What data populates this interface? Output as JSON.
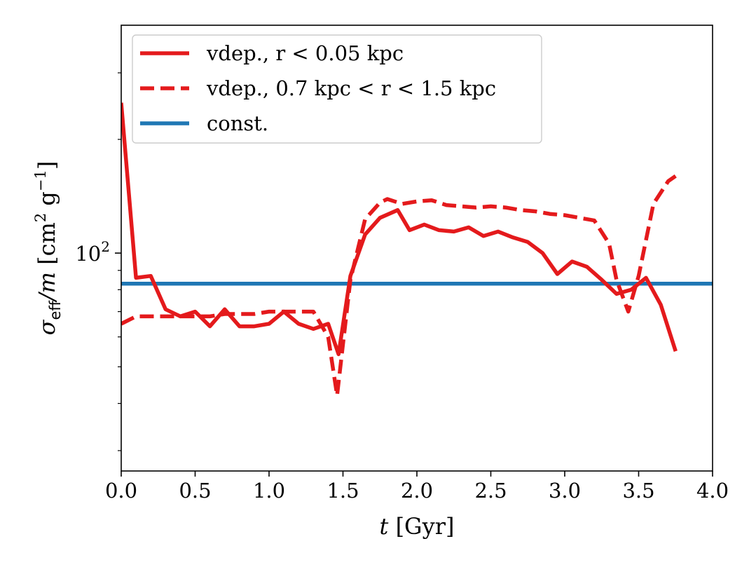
{
  "chart_data": {
    "type": "line",
    "title": "",
    "xlabel_var": "t",
    "xlabel_unit": " [Gyr]",
    "ylabel_var": "σ",
    "ylabel_sub": "eff",
    "ylabel_rest": "/m",
    "ylabel_unit_open": " [cm",
    "ylabel_unit_sup1": "2",
    "ylabel_unit_mid": " g",
    "ylabel_unit_sup2": "−1",
    "ylabel_unit_close": "]",
    "xlim": [
      0.0,
      4.0
    ],
    "ylim": [
      26.5,
      401
    ],
    "yscale": "log",
    "x_ticks": [
      0.0,
      0.5,
      1.0,
      1.5,
      2.0,
      2.5,
      3.0,
      3.5,
      4.0
    ],
    "x_tick_labels": [
      "0.0",
      "0.5",
      "1.0",
      "1.5",
      "2.0",
      "2.5",
      "3.0",
      "3.5",
      "4.0"
    ],
    "y_major_ticks": [
      100
    ],
    "y_major_label_base": "10",
    "y_major_label_exp": "2",
    "y_minor_ticks": [
      30,
      40,
      50,
      60,
      70,
      80,
      90,
      200,
      300
    ],
    "legend_position": "upper-left",
    "series": [
      {
        "name": "vdep., r < 0.05 kpc",
        "color": "#e41a1c",
        "style": "solid",
        "x": [
          0.0,
          0.1,
          0.2,
          0.3,
          0.4,
          0.5,
          0.6,
          0.7,
          0.8,
          0.9,
          1.0,
          1.1,
          1.2,
          1.3,
          1.4,
          1.47,
          1.55,
          1.65,
          1.75,
          1.87,
          1.95,
          2.05,
          2.15,
          2.25,
          2.35,
          2.45,
          2.55,
          2.65,
          2.75,
          2.85,
          2.95,
          3.05,
          3.15,
          3.25,
          3.35,
          3.45,
          3.55,
          3.65,
          3.75
        ],
        "values": [
          250,
          86,
          87,
          71,
          68,
          70,
          64,
          71,
          64,
          64,
          65,
          70,
          65,
          63,
          65,
          54,
          87,
          112,
          124,
          130,
          115,
          119,
          115,
          114,
          117,
          111,
          114,
          110,
          107,
          100,
          88,
          95,
          92,
          85,
          78,
          80,
          86,
          73,
          55
        ]
      },
      {
        "name": "vdep., 0.7 kpc < r < 1.5 kpc",
        "color": "#e41a1c",
        "style": "dashed",
        "x": [
          0.0,
          0.1,
          0.2,
          0.3,
          0.4,
          0.5,
          0.6,
          0.7,
          0.8,
          0.9,
          1.0,
          1.1,
          1.2,
          1.3,
          1.4,
          1.46,
          1.55,
          1.65,
          1.75,
          1.8,
          1.9,
          2.0,
          2.1,
          2.2,
          2.3,
          2.4,
          2.5,
          2.6,
          2.7,
          2.8,
          2.9,
          3.0,
          3.1,
          3.2,
          3.3,
          3.35,
          3.43,
          3.5,
          3.6,
          3.7,
          3.75
        ],
        "values": [
          65,
          68,
          68,
          68,
          68,
          68,
          68,
          69,
          69,
          69,
          70,
          70,
          70,
          70,
          60,
          42,
          85,
          123,
          136,
          139,
          135,
          137,
          138,
          134,
          133,
          132,
          133,
          132,
          130,
          129,
          127,
          126,
          124,
          122,
          106,
          85,
          70,
          87,
          135,
          155,
          160
        ]
      },
      {
        "name": "const.",
        "color": "#1f77b4",
        "style": "solid",
        "x": [
          0.0,
          4.0
        ],
        "values": [
          83,
          83
        ]
      }
    ]
  }
}
